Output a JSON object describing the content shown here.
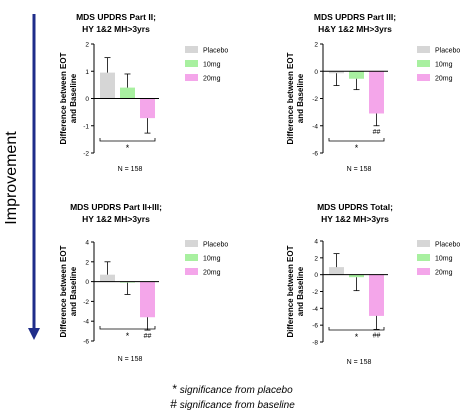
{
  "side_label": "Improvement",
  "colors": {
    "arrow": "#1f2d8a",
    "Placebo": "#d6d6d6",
    "10mg": "#a8f0a0",
    "20mg": "#f4a6ea",
    "axis": "#000000"
  },
  "footnotes": [
    {
      "symbol": "*",
      "text": "significance from placebo"
    },
    {
      "symbol": "#",
      "text": "significance from baseline"
    }
  ],
  "chart_data": [
    {
      "type": "bar",
      "title_lines": [
        "MDS UPDRS Part II;",
        "HY 1&2 MH>3yrs"
      ],
      "ylabel_lines": [
        "Difference between EOT",
        "and Baseline"
      ],
      "ylim": [
        -2,
        2
      ],
      "yticks": [
        2,
        1,
        0,
        -1,
        -2
      ],
      "categories": [
        "Placebo",
        "10mg",
        "20mg"
      ],
      "values": [
        0.95,
        0.4,
        -0.72
      ],
      "errors": [
        0.55,
        0.5,
        0.55
      ],
      "annotations": [
        "",
        "",
        ""
      ],
      "significance": "*",
      "n_label": "N = 158",
      "legend": [
        "Placebo",
        "10mg",
        "20mg"
      ]
    },
    {
      "type": "bar",
      "title_lines": [
        "MDS UPDRS Part III;",
        "H&Y 1&2 MH>3yrs"
      ],
      "ylabel_lines": [
        "Difference between EOT",
        "and Baseline"
      ],
      "ylim": [
        -6,
        2
      ],
      "yticks": [
        2,
        0,
        -2,
        -4,
        -6
      ],
      "categories": [
        "Placebo",
        "10mg",
        "20mg"
      ],
      "values": [
        -0.15,
        -0.55,
        -3.1
      ],
      "errors": [
        0.9,
        0.8,
        0.9
      ],
      "annotations": [
        "",
        "",
        "##"
      ],
      "significance": "*",
      "n_label": "N = 158",
      "legend": [
        "Placebo",
        "10mg",
        "20mg"
      ]
    },
    {
      "type": "bar",
      "title_lines": [
        "MDS UPDRS Part II+III;",
        "HY 1&2 MH>3yrs"
      ],
      "ylabel_lines": [
        "Difference between EOT",
        "and Baseline"
      ],
      "ylim": [
        -6,
        4
      ],
      "yticks": [
        4,
        2,
        0,
        -2,
        -4,
        -6
      ],
      "categories": [
        "Placebo",
        "10mg",
        "20mg"
      ],
      "values": [
        0.7,
        -0.1,
        -3.6
      ],
      "errors": [
        1.3,
        1.2,
        1.3
      ],
      "annotations": [
        "",
        "",
        "##"
      ],
      "significance": "*",
      "n_label": "N = 158",
      "legend": [
        "Placebo",
        "10mg",
        "20mg"
      ]
    },
    {
      "type": "bar",
      "title_lines": [
        "MDS UPDRS Total;",
        "HY 1&2 MH>3yrs"
      ],
      "ylabel_lines": [
        "Difference between EOT",
        "and Baseline"
      ],
      "ylim": [
        -8,
        4
      ],
      "yticks": [
        4,
        2,
        0,
        -2,
        -4,
        -6,
        -8
      ],
      "categories": [
        "Placebo",
        "10mg",
        "20mg"
      ],
      "values": [
        0.9,
        -0.3,
        -4.9
      ],
      "errors": [
        1.6,
        1.6,
        1.6
      ],
      "annotations": [
        "",
        "",
        "##"
      ],
      "significance": "*",
      "n_label": "N = 158",
      "legend": [
        "Placebo",
        "10mg",
        "20mg"
      ]
    }
  ]
}
